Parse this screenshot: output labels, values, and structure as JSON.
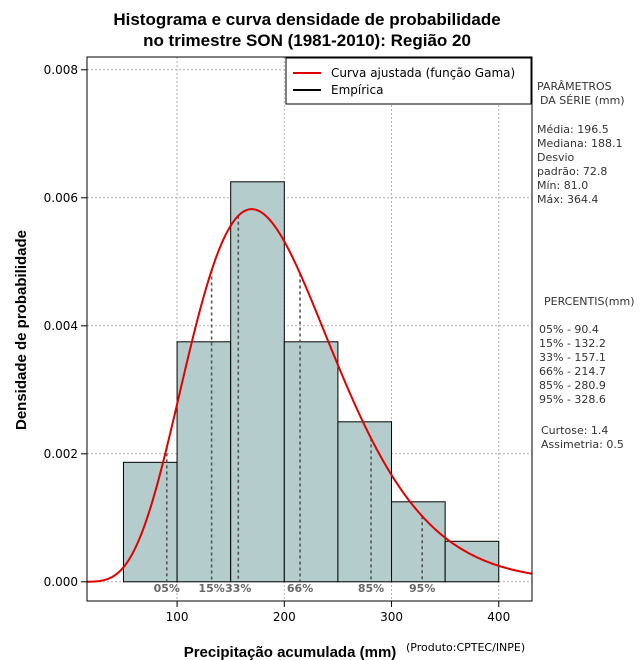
{
  "chart_data": {
    "type": "bar",
    "title_line1": "Histograma e curva densidade de probabilidade",
    "title_line2": "no trimestre SON (1981-2010): Região 20",
    "xlabel": "Precipitação acumulada (mm)",
    "ylabel": "Densidade de probabilidade",
    "credit": "(Produto:CPTEC/INPE)",
    "xlim": [
      16,
      431
    ],
    "ylim": [
      -0.0003,
      0.0082
    ],
    "xticks": [
      100,
      200,
      300,
      400
    ],
    "yticks": [
      0.0,
      0.002,
      0.004,
      0.006,
      0.008
    ],
    "ytick_labels": [
      "0.000",
      "0.002",
      "0.004",
      "0.006",
      "0.008"
    ],
    "bins": [
      {
        "start": 50,
        "end": 100,
        "density": 0.001867
      },
      {
        "start": 100,
        "end": 150,
        "density": 0.00375
      },
      {
        "start": 150,
        "end": 200,
        "density": 0.00625
      },
      {
        "start": 200,
        "end": 250,
        "density": 0.00375
      },
      {
        "start": 250,
        "end": 300,
        "density": 0.0025
      },
      {
        "start": 300,
        "end": 350,
        "density": 0.00125
      },
      {
        "start": 350,
        "end": 400,
        "density": 0.000633
      }
    ],
    "gamma_fit": {
      "shape": 7.29,
      "scale": 26.96,
      "color": "#e00000"
    },
    "bar_fill": "#b4cccc",
    "legend": [
      {
        "label": "Curva ajustada (função Gama)",
        "color": "#e00000"
      },
      {
        "label": "Empírica",
        "color": "#000000"
      }
    ],
    "percentile_markers": [
      {
        "label": "05%",
        "value": 90.4
      },
      {
        "label": "15%",
        "value": 132.2
      },
      {
        "label": "33%",
        "value": 157.1
      },
      {
        "label": "66%",
        "value": 214.7
      },
      {
        "label": "85%",
        "value": 280.9
      },
      {
        "label": "95%",
        "value": 328.6
      }
    ]
  },
  "side_panel": {
    "params_title_1": "PARÂMETROS",
    "params_title_2": "DA SÉRIE (mm)",
    "media": "Média:  196.5",
    "mediana": "Mediana:  188.1",
    "desvio_1": "Desvio",
    "desvio_2": "padrão:  72.8",
    "min": "Mín:  81.0",
    "max": "Máx:  364.4",
    "percentis_title": "PERCENTIS(mm)",
    "p05": "05% -   90.4",
    "p15": "15% -   132.2",
    "p33": "33% -   157.1",
    "p66": "66% -   214.7",
    "p85": "85% -   280.9",
    "p95": "95% -   328.6",
    "curtose": "Curtose:  1.4",
    "assimetria": "Assimetria:  0.5"
  }
}
